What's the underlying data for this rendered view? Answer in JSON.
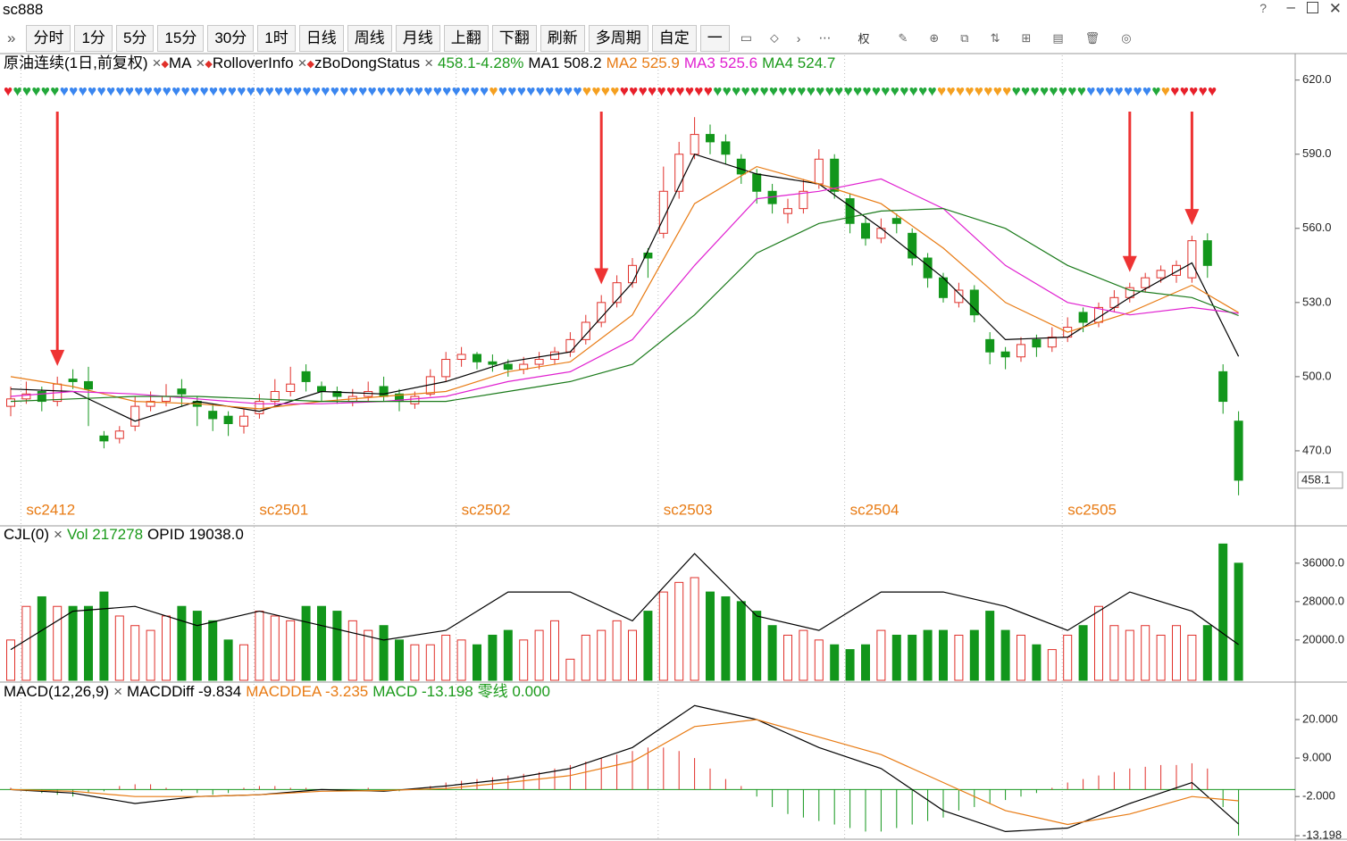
{
  "window": {
    "title": "sc888"
  },
  "toolbar": {
    "buttons": [
      "分时",
      "1分",
      "5分",
      "15分",
      "30分",
      "1时",
      "日线",
      "周线",
      "月线",
      "上翻",
      "下翻",
      "刷新",
      "多周期",
      "自定",
      "一"
    ],
    "extra": "权"
  },
  "chart_data": [
    {
      "type": "candlestick",
      "header": [
        {
          "text": "原油连续(1日,前复权)",
          "color": "#000"
        },
        {
          "text": "×",
          "color": "#555"
        },
        {
          "text": "◆",
          "color": "#e0302a"
        },
        {
          "text": "MA",
          "color": "#000"
        },
        {
          "text": "×",
          "color": "#555"
        },
        {
          "text": "◆",
          "color": "#e0302a"
        },
        {
          "text": "RolloverInfo",
          "color": "#000"
        },
        {
          "text": "×",
          "color": "#555"
        },
        {
          "text": "◆",
          "color": "#e0302a"
        },
        {
          "text": "zBoDongStatus",
          "color": "#000"
        },
        {
          "text": "×",
          "color": "#555"
        },
        {
          "text": "458.1-4.28%",
          "color": "#1a9a1a"
        },
        {
          "text": "MA1 508.2",
          "color": "#000"
        },
        {
          "text": "MA2 525.9",
          "color": "#e87b14"
        },
        {
          "text": "MA3 525.6",
          "color": "#e020d0"
        },
        {
          "text": "MA4 524.7",
          "color": "#1a9a1a"
        }
      ],
      "ylim": [
        440,
        630
      ],
      "yticks": [
        {
          "value": 620,
          "label": "620.0"
        },
        {
          "value": 590,
          "label": "590.0"
        },
        {
          "value": 560,
          "label": "560.0"
        },
        {
          "value": 530,
          "label": "530.0"
        },
        {
          "value": 500,
          "label": "500.0"
        },
        {
          "value": 470,
          "label": "470.0"
        }
      ],
      "last_price": 458.1,
      "up_color": "#e0302a",
      "down_color": "#12961b",
      "candles": [
        [
          488,
          496,
          484,
          491
        ],
        [
          491,
          498,
          489,
          493
        ],
        [
          494,
          496,
          486,
          490
        ],
        [
          490,
          500,
          488,
          497
        ],
        [
          499,
          503,
          495,
          498
        ],
        [
          498,
          504,
          480,
          495
        ],
        [
          476,
          478,
          471,
          474
        ],
        [
          475,
          480,
          473,
          478
        ],
        [
          480,
          492,
          478,
          488
        ],
        [
          488,
          494,
          486,
          490
        ],
        [
          490,
          497,
          488,
          492
        ],
        [
          495,
          499,
          488,
          493
        ],
        [
          490,
          492,
          480,
          488
        ],
        [
          486,
          489,
          478,
          483
        ],
        [
          484,
          486,
          476,
          481
        ],
        [
          480,
          487,
          477,
          484
        ],
        [
          485,
          493,
          483,
          490
        ],
        [
          490,
          499,
          488,
          494
        ],
        [
          494,
          504,
          492,
          497
        ],
        [
          502,
          505,
          494,
          498
        ],
        [
          496,
          498,
          490,
          494
        ],
        [
          494,
          496,
          489,
          492
        ],
        [
          490,
          495,
          488,
          492
        ],
        [
          492,
          498,
          490,
          494
        ],
        [
          496,
          500,
          490,
          492
        ],
        [
          493,
          495,
          486,
          490
        ],
        [
          489,
          494,
          487,
          492
        ],
        [
          493,
          503,
          492,
          500
        ],
        [
          500,
          510,
          498,
          507
        ],
        [
          507,
          512,
          504,
          509
        ],
        [
          509,
          510,
          503,
          506
        ],
        [
          506,
          509,
          502,
          505
        ],
        [
          505,
          507,
          500,
          503
        ],
        [
          503,
          508,
          501,
          505
        ],
        [
          505,
          510,
          503,
          507
        ],
        [
          507,
          512,
          505,
          510
        ],
        [
          510,
          518,
          508,
          515
        ],
        [
          515,
          525,
          513,
          522
        ],
        [
          522,
          533,
          520,
          530
        ],
        [
          530,
          541,
          528,
          538
        ],
        [
          538,
          548,
          536,
          545
        ],
        [
          550,
          552,
          540,
          548
        ],
        [
          558,
          585,
          556,
          575
        ],
        [
          575,
          595,
          572,
          590
        ],
        [
          590,
          605,
          588,
          598
        ],
        [
          598,
          602,
          590,
          595
        ],
        [
          595,
          598,
          586,
          590
        ],
        [
          588,
          590,
          578,
          582
        ],
        [
          582,
          584,
          570,
          575
        ],
        [
          575,
          578,
          566,
          570
        ],
        [
          566,
          572,
          562,
          568
        ],
        [
          568,
          580,
          566,
          575
        ],
        [
          578,
          592,
          576,
          588
        ],
        [
          588,
          590,
          572,
          575
        ],
        [
          572,
          574,
          558,
          562
        ],
        [
          562,
          565,
          553,
          556
        ],
        [
          556,
          564,
          554,
          560
        ],
        [
          564,
          566,
          558,
          562
        ],
        [
          558,
          560,
          545,
          548
        ],
        [
          548,
          550,
          536,
          540
        ],
        [
          540,
          542,
          530,
          532
        ],
        [
          530,
          538,
          528,
          535
        ],
        [
          535,
          537,
          522,
          525
        ],
        [
          515,
          518,
          505,
          510
        ],
        [
          510,
          512,
          503,
          508
        ],
        [
          508,
          516,
          506,
          513
        ],
        [
          515,
          517,
          508,
          512
        ],
        [
          512,
          520,
          510,
          516
        ],
        [
          516,
          524,
          514,
          520
        ],
        [
          526,
          528,
          518,
          522
        ],
        [
          522,
          530,
          520,
          528
        ],
        [
          528,
          535,
          526,
          532
        ],
        [
          532,
          538,
          530,
          536
        ],
        [
          536,
          542,
          534,
          540
        ],
        [
          540,
          545,
          538,
          543
        ],
        [
          541,
          547,
          538,
          545
        ],
        [
          540,
          557,
          538,
          555
        ],
        [
          555,
          558,
          540,
          545
        ],
        [
          502,
          505,
          485,
          490
        ],
        [
          482,
          486,
          452,
          458.1
        ]
      ],
      "ma_x": [
        0,
        4,
        8,
        12,
        16,
        20,
        24,
        28,
        32,
        36,
        40,
        44,
        48,
        52,
        56,
        60,
        64,
        68,
        72,
        76,
        79
      ],
      "series": [
        {
          "name": "MA1",
          "color": "#000000",
          "values": [
            495,
            494,
            482,
            490,
            486,
            494,
            493,
            498,
            506,
            510,
            538,
            590,
            582,
            578,
            560,
            540,
            515,
            516,
            532,
            546,
            508.2
          ]
        },
        {
          "name": "MA2",
          "color": "#e87b14",
          "values": [
            500,
            496,
            490,
            489,
            487,
            490,
            492,
            494,
            502,
            506,
            525,
            570,
            585,
            578,
            570,
            552,
            530,
            518,
            526,
            537,
            525.9
          ]
        },
        {
          "name": "MA3",
          "color": "#e020d0",
          "values": [
            492,
            494,
            493,
            491,
            489,
            489,
            490,
            492,
            498,
            502,
            515,
            545,
            572,
            575,
            580,
            568,
            545,
            530,
            525,
            528,
            525.6
          ]
        },
        {
          "name": "MA4",
          "color": "#1a7a1a",
          "values": [
            490,
            491,
            492,
            492,
            491,
            490,
            490,
            490,
            494,
            498,
            505,
            525,
            550,
            562,
            567,
            568,
            560,
            545,
            535,
            532,
            524.7
          ]
        }
      ],
      "contracts": [
        {
          "label": "sc2412",
          "at": 1
        },
        {
          "label": "sc2501",
          "at": 16
        },
        {
          "label": "sc2502",
          "at": 29
        },
        {
          "label": "sc2503",
          "at": 42
        },
        {
          "label": "sc2504",
          "at": 54
        },
        {
          "label": "sc2505",
          "at": 68
        }
      ],
      "arrows_at": [
        3,
        38,
        72,
        76
      ],
      "status_strip": [
        {
          "color": "#e8202a",
          "count": 1
        },
        {
          "color": "#22a83a",
          "count": 5
        },
        {
          "color": "#3a86f0",
          "count": 46
        },
        {
          "color": "#f5a020",
          "count": 1
        },
        {
          "color": "#3a86f0",
          "count": 9
        },
        {
          "color": "#f5a020",
          "count": 4
        },
        {
          "color": "#e8202a",
          "count": 10
        },
        {
          "color": "#22a83a",
          "count": 24
        },
        {
          "color": "#f5a020",
          "count": 8
        },
        {
          "color": "#22a83a",
          "count": 8
        },
        {
          "color": "#3a86f0",
          "count": 7
        },
        {
          "color": "#22a83a",
          "count": 1
        },
        {
          "color": "#f5a020",
          "count": 1
        },
        {
          "color": "#e8202a",
          "count": 5
        }
      ]
    },
    {
      "type": "volume",
      "header": [
        {
          "text": "CJL(0)",
          "color": "#000"
        },
        {
          "text": "×",
          "color": "#555"
        },
        {
          "text": "Vol 217278",
          "color": "#1a9a1a"
        },
        {
          "text": "OPID 19038.0",
          "color": "#000"
        }
      ],
      "ylim": [
        11600,
        43600
      ],
      "yticks": [
        {
          "value": 36000,
          "label": "36000.0"
        },
        {
          "value": 28000,
          "label": "28000.0"
        },
        {
          "value": 20000,
          "label": "20000.0"
        }
      ],
      "values": [
        20000,
        27000,
        29000,
        27000,
        27000,
        27000,
        30000,
        25000,
        23000,
        22000,
        25000,
        27000,
        26000,
        24000,
        20000,
        19000,
        26000,
        25000,
        24000,
        27000,
        27000,
        26000,
        24000,
        22000,
        23000,
        20000,
        19000,
        19000,
        21000,
        20000,
        19000,
        21000,
        22000,
        20000,
        22000,
        24000,
        16000,
        21000,
        22000,
        24000,
        22000,
        26000,
        30000,
        32000,
        33000,
        30000,
        29000,
        28000,
        26000,
        23000,
        21000,
        22000,
        20000,
        19000,
        18000,
        19000,
        22000,
        21000,
        21000,
        22000,
        22000,
        21000,
        22000,
        26000,
        22000,
        21000,
        19000,
        18000,
        21000,
        23000,
        27000,
        23000,
        22000,
        23000,
        21000,
        23000,
        21000,
        23000,
        40000,
        36000
      ],
      "line_x": [
        0,
        4,
        8,
        12,
        16,
        20,
        24,
        28,
        32,
        36,
        40,
        44,
        48,
        52,
        56,
        60,
        64,
        68,
        72,
        76,
        79
      ],
      "line": {
        "name": "OPID",
        "color": "#000000",
        "values": [
          18000,
          26000,
          27000,
          23000,
          26000,
          23000,
          20000,
          22000,
          30000,
          30000,
          24000,
          38000,
          25000,
          22000,
          30000,
          30000,
          27000,
          22000,
          30000,
          26000,
          19038
        ]
      }
    },
    {
      "type": "macd",
      "header": [
        {
          "text": "MACD(12,26,9)",
          "color": "#000"
        },
        {
          "text": "×",
          "color": "#555"
        },
        {
          "text": "MACDDiff -9.834",
          "color": "#000"
        },
        {
          "text": "MACDDEA -3.235",
          "color": "#e87b14"
        },
        {
          "text": "MACD -13.198",
          "color": "#1a9a1a"
        },
        {
          "text": "零线 0.000",
          "color": "#1a9a1a"
        }
      ],
      "ylim": [
        -14.2,
        30.2
      ],
      "yticks": [
        {
          "value": 20,
          "label": "20.000"
        },
        {
          "value": 9,
          "label": "9.000"
        },
        {
          "value": -2,
          "label": "-2.000"
        },
        {
          "value": -13.198,
          "label": "-13.198"
        }
      ],
      "values": [
        0.5,
        -0.5,
        -1,
        -1.5,
        -2,
        -1,
        -0.5,
        1,
        1.5,
        1.5,
        0.5,
        -0.5,
        -1,
        -1.5,
        -1,
        0.5,
        1,
        1,
        0.5,
        0.5,
        0,
        -0.5,
        0,
        0.5,
        0,
        -0.5,
        0,
        1,
        2,
        2.5,
        3,
        3.5,
        4,
        4.5,
        5,
        6,
        7,
        8,
        9,
        10,
        11,
        12,
        12,
        11,
        9,
        6,
        3,
        1,
        -2,
        -5,
        -7,
        -8,
        -9,
        -10,
        -11,
        -12,
        -12,
        -11,
        -10,
        -9,
        -8,
        -6,
        -5,
        -4,
        -3,
        -2,
        -1,
        0.5,
        2,
        3,
        4,
        5,
        6,
        6.5,
        7,
        7,
        7.5,
        6,
        -5,
        -13.198
      ],
      "line_x": [
        0,
        4,
        8,
        12,
        16,
        20,
        24,
        28,
        32,
        36,
        40,
        44,
        48,
        52,
        56,
        60,
        64,
        68,
        72,
        76,
        79
      ],
      "series": [
        {
          "name": "MACDDiff",
          "color": "#000000",
          "values": [
            0,
            -1,
            -4,
            -2,
            -1.5,
            0,
            -0.5,
            1,
            3,
            6,
            12,
            24,
            20,
            12,
            6,
            -6,
            -12,
            -11,
            -4,
            2,
            -9.834
          ]
        },
        {
          "name": "MACDDEA",
          "color": "#e87b14",
          "values": [
            0,
            -0.5,
            -2,
            -2,
            -1.5,
            -0.5,
            -0.3,
            0.3,
            2,
            4,
            8,
            18,
            20,
            15,
            10,
            2,
            -6,
            -10,
            -7,
            -2,
            -3.235
          ]
        }
      ]
    }
  ]
}
